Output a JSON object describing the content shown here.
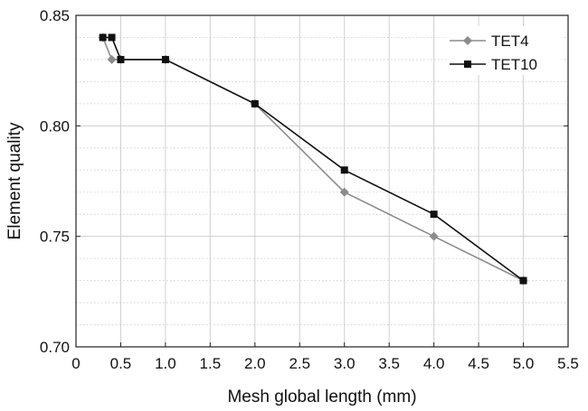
{
  "chart_data": {
    "type": "line",
    "xlabel": "Mesh global length (mm)",
    "ylabel": "Element quality",
    "xlim": [
      0,
      5.5
    ],
    "ylim": [
      0.7,
      0.85
    ],
    "xticks": [
      "0",
      "0.5",
      "1.0",
      "1.5",
      "2.0",
      "2.5",
      "3.0",
      "3.5",
      "4.0",
      "4.5",
      "5.0",
      "5.5"
    ],
    "yticks": [
      "0.70",
      "0.75",
      "0.80",
      "0.85"
    ],
    "grid": true,
    "legend_position": "top-right",
    "series": [
      {
        "name": "TET4",
        "marker": "diamond",
        "color": "#8c8c8c",
        "points": [
          {
            "x": 0.3,
            "y": 0.84
          },
          {
            "x": 0.4,
            "y": 0.83
          },
          {
            "x": 0.5,
            "y": 0.83
          },
          {
            "x": 1.0,
            "y": 0.83
          },
          {
            "x": 2.0,
            "y": 0.81
          },
          {
            "x": 3.0,
            "y": 0.77
          },
          {
            "x": 4.0,
            "y": 0.75
          },
          {
            "x": 5.0,
            "y": 0.73
          }
        ]
      },
      {
        "name": "TET10",
        "marker": "square",
        "color": "#111111",
        "points": [
          {
            "x": 0.3,
            "y": 0.84
          },
          {
            "x": 0.4,
            "y": 0.84
          },
          {
            "x": 0.5,
            "y": 0.83
          },
          {
            "x": 1.0,
            "y": 0.83
          },
          {
            "x": 2.0,
            "y": 0.81
          },
          {
            "x": 3.0,
            "y": 0.78
          },
          {
            "x": 4.0,
            "y": 0.76
          },
          {
            "x": 5.0,
            "y": 0.73
          }
        ]
      }
    ]
  }
}
